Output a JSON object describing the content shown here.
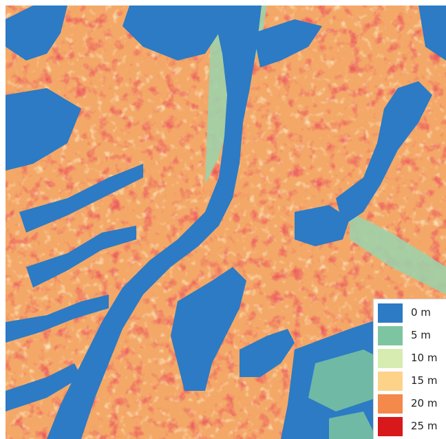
{
  "map": {
    "legend": {
      "items": [
        {
          "label": "0 m",
          "color": "#2c7bc4"
        },
        {
          "label": "5 m",
          "color": "#7dc4a0"
        },
        {
          "label": "10 m",
          "color": "#d6ecb0"
        },
        {
          "label": "15 m",
          "color": "#fdd38a"
        },
        {
          "label": "20 m",
          "color": "#f38a4c"
        },
        {
          "label": "25 m",
          "color": "#d7191c"
        }
      ]
    },
    "colors": {
      "water": "#2c7bc4",
      "lowland": "#7dc4a0",
      "terrain_mid": "#f7b06c",
      "terrain_high": "#d7191c",
      "terrain_light": "#fdd38a"
    }
  }
}
